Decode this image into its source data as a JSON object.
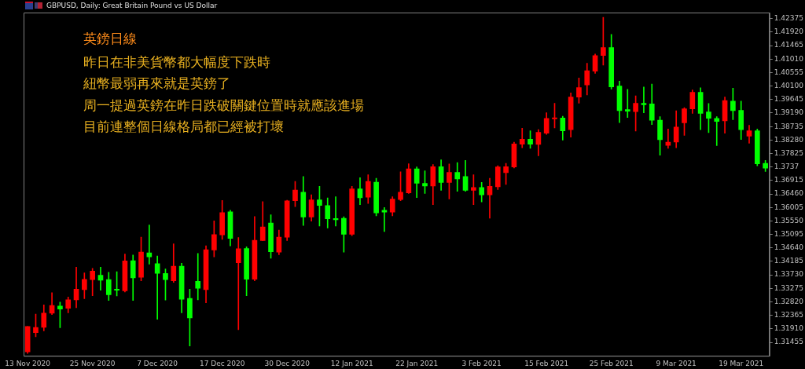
{
  "chart_data": {
    "type": "candlestick",
    "title": "GBPUSD, Daily: Great Britain Pound vs US Dollar",
    "annotations": [
      "英鎊日線",
      "昨日在非美貨幣都大幅度下跌時",
      "紐幣最弱再來就是英鎊了",
      "周一提過英鎊在昨日跌破關鍵位置時就應該進場",
      "目前連整個日線格局都已經被打壞"
    ],
    "categories": [
      "13 Nov 2020",
      null,
      null,
      null,
      null,
      null,
      null,
      null,
      "25 Nov 2020",
      null,
      null,
      null,
      null,
      null,
      null,
      null,
      "7 Dec 2020",
      null,
      null,
      null,
      null,
      null,
      null,
      null,
      "17 Dec 2020",
      null,
      null,
      null,
      null,
      null,
      null,
      null,
      "30 Dec 2020",
      null,
      null,
      null,
      null,
      null,
      null,
      null,
      "12 Jan 2021",
      null,
      null,
      null,
      null,
      null,
      null,
      null,
      "22 Jan 2021",
      null,
      null,
      null,
      null,
      null,
      null,
      null,
      "3 Feb 2021",
      null,
      null,
      null,
      null,
      null,
      null,
      null,
      "15 Feb 2021",
      null,
      null,
      null,
      null,
      null,
      null,
      null,
      "25 Feb 2021",
      null,
      null,
      null,
      null,
      null,
      null,
      null,
      "9 Mar 2021",
      null,
      null,
      null,
      null,
      null,
      null,
      null,
      "19 Mar 2021",
      null,
      null,
      null
    ],
    "ohlc": [
      [
        1.3113,
        1.3199,
        1.3108,
        1.3199
      ],
      [
        1.3178,
        1.3241,
        1.3164,
        1.3196
      ],
      [
        1.3196,
        1.3272,
        1.3184,
        1.3244
      ],
      [
        1.3244,
        1.3313,
        1.3239,
        1.327
      ],
      [
        1.3268,
        1.3281,
        1.3195,
        1.3258
      ],
      [
        1.326,
        1.3298,
        1.3245,
        1.3289
      ],
      [
        1.3289,
        1.3399,
        1.3262,
        1.3325
      ],
      [
        1.3323,
        1.338,
        1.3293,
        1.3358
      ],
      [
        1.3357,
        1.3395,
        1.3303,
        1.3386
      ],
      [
        1.3372,
        1.3399,
        1.3321,
        1.3355
      ],
      [
        1.3357,
        1.3382,
        1.3287,
        1.3306
      ],
      [
        1.3325,
        1.3384,
        1.3302,
        1.3321
      ],
      [
        1.3319,
        1.3443,
        1.3315,
        1.342
      ],
      [
        1.3421,
        1.344,
        1.3287,
        1.3363
      ],
      [
        1.3365,
        1.35,
        1.3353,
        1.345
      ],
      [
        1.3447,
        1.3541,
        1.3409,
        1.3434
      ],
      [
        1.3411,
        1.3437,
        1.3223,
        1.3378
      ],
      [
        1.3378,
        1.3393,
        1.3288,
        1.3357
      ],
      [
        1.3353,
        1.3478,
        1.3348,
        1.3402
      ],
      [
        1.3402,
        1.3412,
        1.3245,
        1.3291
      ],
      [
        1.3294,
        1.3325,
        1.3133,
        1.3228
      ],
      [
        1.3351,
        1.3445,
        1.3289,
        1.3328
      ],
      [
        1.3323,
        1.3471,
        1.3279,
        1.3458
      ],
      [
        1.3457,
        1.3555,
        1.3434,
        1.3509
      ],
      [
        1.3508,
        1.3624,
        1.3493,
        1.3583
      ],
      [
        1.3586,
        1.3591,
        1.3471,
        1.3496
      ],
      [
        1.3414,
        1.3499,
        1.3188,
        1.3461
      ],
      [
        1.3462,
        1.3468,
        1.3303,
        1.3358
      ],
      [
        1.3358,
        1.357,
        1.3353,
        1.349
      ],
      [
        1.3489,
        1.362,
        1.3488,
        1.3535
      ],
      [
        1.3548,
        1.3576,
        1.3429,
        1.3451
      ],
      [
        1.345,
        1.3524,
        1.3441,
        1.35
      ],
      [
        1.35,
        1.3625,
        1.3489,
        1.3623
      ],
      [
        1.3623,
        1.3688,
        1.3603,
        1.3659
      ],
      [
        1.3652,
        1.3705,
        1.354,
        1.3568
      ],
      [
        1.3568,
        1.3643,
        1.3554,
        1.3626
      ],
      [
        1.3626,
        1.3672,
        1.3538,
        1.3607
      ],
      [
        1.3607,
        1.3633,
        1.3531,
        1.3562
      ],
      [
        1.3563,
        1.3637,
        1.3538,
        1.3559
      ],
      [
        1.3564,
        1.3569,
        1.345,
        1.351
      ],
      [
        1.351,
        1.3672,
        1.3505,
        1.3663
      ],
      [
        1.3663,
        1.3701,
        1.361,
        1.3633
      ],
      [
        1.3635,
        1.3711,
        1.3614,
        1.3688
      ],
      [
        1.3686,
        1.3699,
        1.3572,
        1.3582
      ],
      [
        1.3591,
        1.36,
        1.3519,
        1.3585
      ],
      [
        1.3585,
        1.3637,
        1.3572,
        1.3629
      ],
      [
        1.3627,
        1.3721,
        1.3623,
        1.3652
      ],
      [
        1.365,
        1.3748,
        1.3648,
        1.3731
      ],
      [
        1.3731,
        1.3737,
        1.3634,
        1.3682
      ],
      [
        1.3682,
        1.3724,
        1.3648,
        1.3673
      ],
      [
        1.3673,
        1.3745,
        1.361,
        1.3738
      ],
      [
        1.3738,
        1.3761,
        1.3658,
        1.3685
      ],
      [
        1.3685,
        1.3747,
        1.3629,
        1.3719
      ],
      [
        1.3719,
        1.3752,
        1.3655,
        1.3697
      ],
      [
        1.3705,
        1.3759,
        1.3655,
        1.3658
      ],
      [
        1.3658,
        1.3711,
        1.361,
        1.3668
      ],
      [
        1.3668,
        1.3685,
        1.3619,
        1.3643
      ],
      [
        1.3643,
        1.3699,
        1.3564,
        1.3672
      ],
      [
        1.367,
        1.3741,
        1.3661,
        1.3737
      ],
      [
        1.3718,
        1.3749,
        1.3678,
        1.3738
      ],
      [
        1.3737,
        1.3821,
        1.3734,
        1.3815
      ],
      [
        1.3814,
        1.3868,
        1.3802,
        1.3831
      ],
      [
        1.3831,
        1.3859,
        1.38,
        1.3814
      ],
      [
        1.3813,
        1.3863,
        1.3775,
        1.3854
      ],
      [
        1.3851,
        1.392,
        1.3847,
        1.3901
      ],
      [
        1.3899,
        1.3952,
        1.3869,
        1.3903
      ],
      [
        1.3902,
        1.3908,
        1.3828,
        1.3859
      ],
      [
        1.3863,
        1.3987,
        1.3838,
        1.3973
      ],
      [
        1.3973,
        1.4037,
        1.3952,
        1.4005
      ],
      [
        1.4014,
        1.4087,
        1.398,
        1.4062
      ],
      [
        1.406,
        1.4118,
        1.4053,
        1.4113
      ],
      [
        1.4113,
        1.4242,
        1.4081,
        1.414
      ],
      [
        1.414,
        1.4184,
        1.4,
        1.4007
      ],
      [
        1.401,
        1.4027,
        1.3887,
        1.3927
      ],
      [
        1.3931,
        1.3999,
        1.3904,
        1.3925
      ],
      [
        1.3924,
        1.3977,
        1.3858,
        1.3952
      ],
      [
        1.3952,
        1.4007,
        1.392,
        1.3947
      ],
      [
        1.395,
        1.4017,
        1.388,
        1.3895
      ],
      [
        1.3895,
        1.3907,
        1.3777,
        1.3829
      ],
      [
        1.381,
        1.3865,
        1.38,
        1.3821
      ],
      [
        1.3821,
        1.3927,
        1.3802,
        1.3872
      ],
      [
        1.3886,
        1.3937,
        1.3844,
        1.3933
      ],
      [
        1.3933,
        1.3997,
        1.3918,
        1.3989
      ],
      [
        1.3989,
        1.4004,
        1.3863,
        1.3918
      ],
      [
        1.3923,
        1.3951,
        1.3853,
        1.3901
      ],
      [
        1.3901,
        1.3907,
        1.3809,
        1.3891
      ],
      [
        1.3893,
        1.3973,
        1.3851,
        1.3961
      ],
      [
        1.3959,
        1.4003,
        1.3897,
        1.3927
      ],
      [
        1.3928,
        1.3959,
        1.383,
        1.3863
      ],
      [
        1.3841,
        1.3878,
        1.3817,
        1.3859
      ],
      [
        1.3859,
        1.3865,
        1.3741,
        1.3748
      ],
      [
        1.3749,
        1.3759,
        1.3722,
        1.3733
      ]
    ],
    "colors": [
      "#ff0000",
      "#ff0000",
      "#ff0000",
      "#ff0000",
      "#00ff00",
      "#ff0000",
      "#ff0000",
      "#ff0000",
      "#ff0000",
      "#00ff00",
      "#00ff00",
      "#00ff00",
      "#ff0000",
      "#00ff00",
      "#ff0000",
      "#00ff00",
      "#00ff00",
      "#00ff00",
      "#ff0000",
      "#00ff00",
      "#00ff00",
      "#00ff00",
      "#ff0000",
      "#ff0000",
      "#ff0000",
      "#00ff00",
      "#ff0000",
      "#00ff00",
      "#ff0000",
      "#ff0000",
      "#00ff00",
      "#ff0000",
      "#ff0000",
      "#ff0000",
      "#00ff00",
      "#ff0000",
      "#00ff00",
      "#00ff00",
      "#00ff00",
      "#00ff00",
      "#ff0000",
      "#00ff00",
      "#ff0000",
      "#00ff00",
      "#00ff00",
      "#ff0000",
      "#ff0000",
      "#ff0000",
      "#00ff00",
      "#00ff00",
      "#ff0000",
      "#00ff00",
      "#ff0000",
      "#00ff00",
      "#00ff00",
      "#ff0000",
      "#00ff00",
      "#ff0000",
      "#ff0000",
      "#ff0000",
      "#ff0000",
      "#ff0000",
      "#00ff00",
      "#ff0000",
      "#ff0000",
      "#ff0000",
      "#00ff00",
      "#ff0000",
      "#ff0000",
      "#ff0000",
      "#ff0000",
      "#ff0000",
      "#00ff00",
      "#00ff00",
      "#00ff00",
      "#ff0000",
      "#00ff00",
      "#00ff00",
      "#00ff00",
      "#ff0000",
      "#ff0000",
      "#ff0000",
      "#ff0000",
      "#00ff00",
      "#00ff00",
      "#00ff00",
      "#ff0000",
      "#00ff00",
      "#00ff00",
      "#ff0000",
      "#00ff00",
      "#00ff00"
    ],
    "ylim": [
      1.31,
      1.4258
    ],
    "yticks": [
      1.31455,
      {
        "value": 1.3191,
        "label": "1.31910"
      },
      1.32365,
      {
        "value": 1.3282,
        "label": "1.32820"
      },
      1.33275,
      {
        "value": 1.3373,
        "label": "1.33730"
      },
      1.34185,
      {
        "value": 1.3464,
        "label": "1.34640"
      },
      1.35095,
      {
        "value": 1.3555,
        "label": "1.35550"
      },
      1.36005,
      {
        "value": 1.3646,
        "label": "1.36460"
      },
      1.36915,
      1.3737,
      1.37825,
      {
        "value": 1.3828,
        "label": "1.38280"
      },
      1.38735,
      {
        "value": 1.3919,
        "label": "1.39190"
      },
      1.39645,
      {
        "value": 1.401,
        "label": "1.40100"
      },
      1.40555,
      {
        "value": 1.4101,
        "label": "1.41010"
      },
      1.41465,
      {
        "value": 1.4192,
        "label": "1.41920"
      },
      1.42375
    ],
    "grid": false,
    "legend": false
  }
}
